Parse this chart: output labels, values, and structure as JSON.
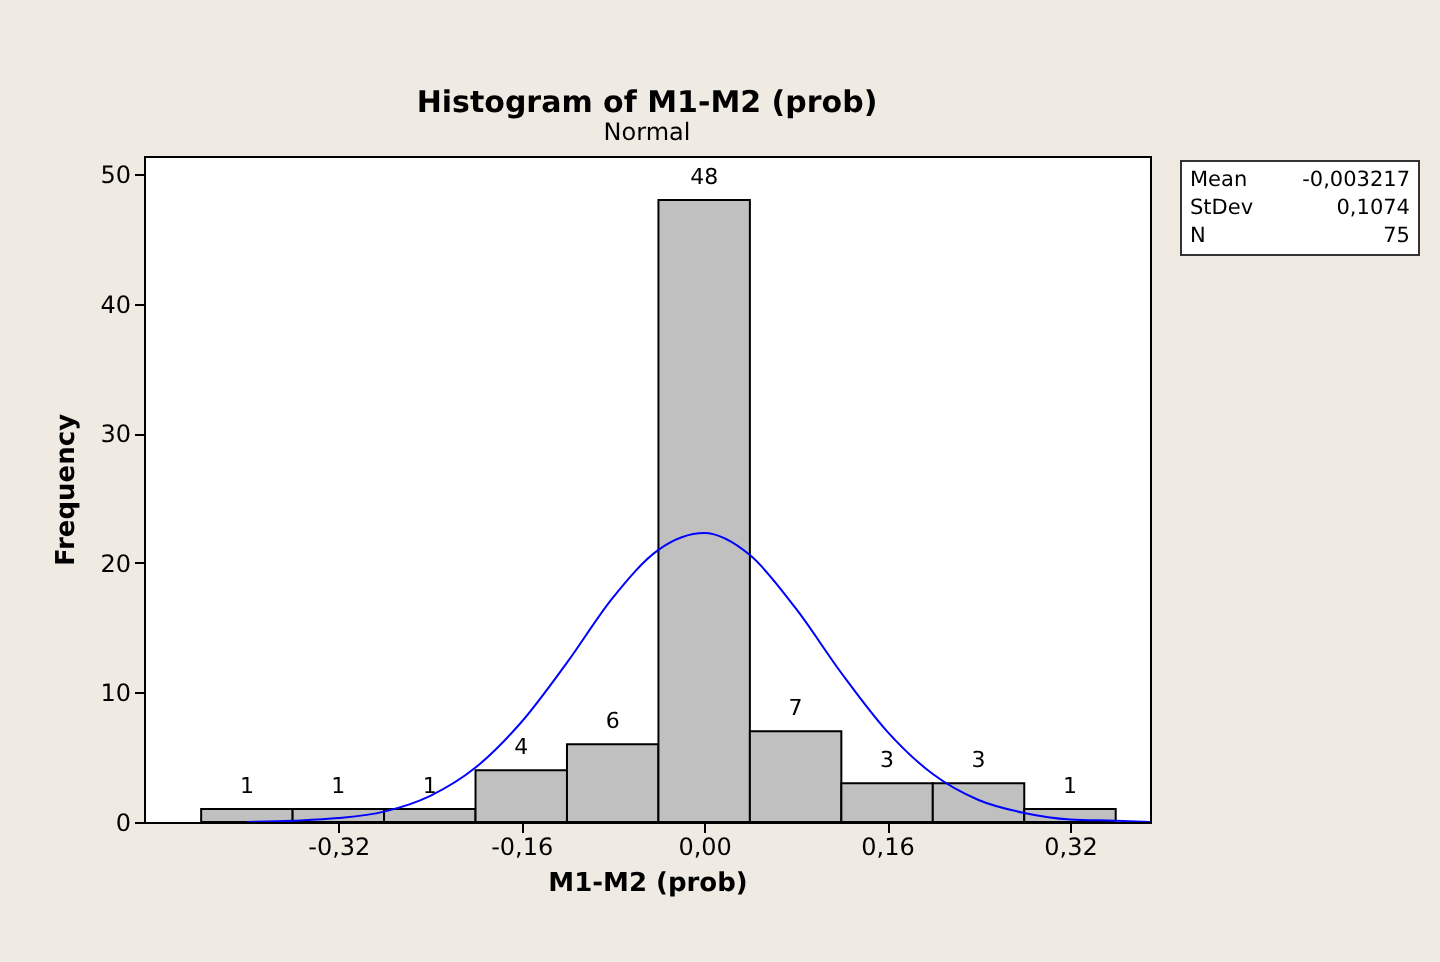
{
  "chart_data": {
    "type": "histogram",
    "title": "Histogram of M1-M2 (prob)",
    "subtitle": "Normal",
    "xlabel": "M1-M2 (prob)",
    "ylabel": "Frequency",
    "bins": [
      -0.44,
      -0.36,
      -0.28,
      -0.2,
      -0.12,
      -0.04,
      0.04,
      0.12,
      0.2,
      0.28,
      0.36
    ],
    "values": [
      1,
      1,
      1,
      4,
      6,
      48,
      7,
      3,
      3,
      1
    ],
    "color": "#c0c0c0",
    "value_labels": [
      "1",
      "1",
      "1",
      "4",
      "6",
      "48",
      "7",
      "3",
      "3",
      "1"
    ],
    "series": [
      {
        "type": "line",
        "color": "#0000ff",
        "x": [
          -0.4,
          -0.36,
          -0.32,
          -0.28,
          -0.24,
          -0.2,
          -0.16,
          -0.12,
          -0.08,
          -0.04,
          0,
          0.04,
          0.08,
          0.12,
          0.16,
          0.2,
          0.24,
          0.28,
          0.32,
          0.36,
          0.39
        ],
        "values": [
          0.0,
          0.1,
          0.3,
          0.8,
          2.0,
          4.2,
          7.7,
          12.3,
          17.3,
          21.0,
          22.3,
          20.6,
          16.5,
          11.5,
          7.0,
          3.7,
          1.7,
          0.7,
          0.2,
          0.1,
          0.0
        ]
      }
    ],
    "xlim": [
      -0.49,
      0.39
    ],
    "ylim": [
      0,
      51.4
    ],
    "xticks": [
      {
        "value": -0.32,
        "label": "-0,32"
      },
      {
        "value": -0.16,
        "label": "-0,16"
      },
      {
        "value": 0,
        "label": "0,00"
      },
      {
        "value": 0.16,
        "label": "0,16"
      },
      {
        "value": 0.32,
        "label": "0,32"
      }
    ],
    "yticks": [
      0,
      10,
      20,
      30,
      40,
      50
    ],
    "grid": false,
    "annotations": [
      "Mean -0,003217",
      "StDev 0,1074",
      "N 75"
    ]
  }
}
